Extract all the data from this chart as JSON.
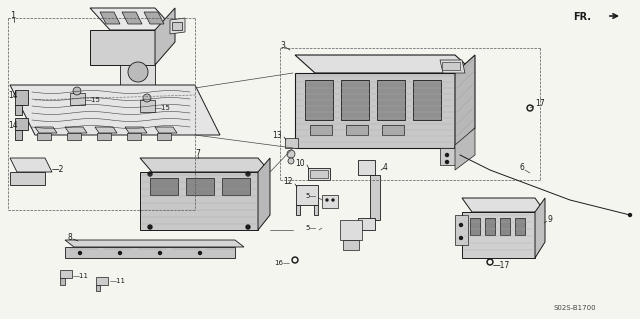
{
  "bg_color": "#f5f5f0",
  "line_color": "#1a1a1a",
  "fig_width": 6.4,
  "fig_height": 3.19,
  "dpi": 100,
  "part_number": "S02S-B1700",
  "fr_label": "FR."
}
